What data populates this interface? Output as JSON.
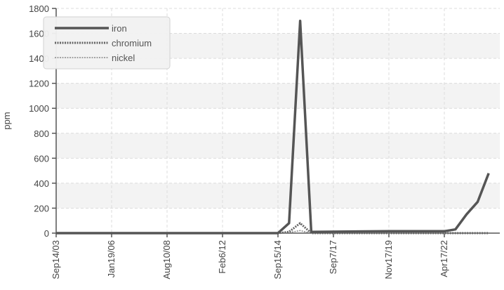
{
  "chart_data": {
    "type": "line",
    "title": "",
    "xlabel": "",
    "ylabel": "ppm",
    "ylim": [
      0,
      1800
    ],
    "yticks": [
      0,
      200,
      400,
      600,
      800,
      1000,
      1200,
      1400,
      1600,
      1800
    ],
    "xlim": [
      0,
      40
    ],
    "xtick_labels": [
      {
        "pos": 0,
        "label": "Sep14/03"
      },
      {
        "pos": 5,
        "label": "Jan19/06"
      },
      {
        "pos": 10,
        "label": "Aug10/08"
      },
      {
        "pos": 15,
        "label": "Feb6/12"
      },
      {
        "pos": 20,
        "label": "Sep15/14"
      },
      {
        "pos": 25,
        "label": "Sep7/17"
      },
      {
        "pos": 30,
        "label": "Nov17/19"
      },
      {
        "pos": 35,
        "label": "Apr17/22"
      }
    ],
    "grid": true,
    "legend_position": "top-left",
    "series": [
      {
        "name": "iron",
        "color": "#555555",
        "style": "solid",
        "x": [
          0,
          5,
          10,
          15,
          20,
          21,
          22,
          23,
          30,
          34,
          35,
          36,
          37,
          38,
          39
        ],
        "values": [
          0,
          0,
          0,
          0,
          0,
          80,
          1700,
          10,
          15,
          15,
          15,
          30,
          150,
          250,
          480
        ]
      },
      {
        "name": "chromium",
        "color": "#666666",
        "style": "dashed-thick",
        "x": [
          0,
          20,
          21,
          22,
          23,
          39
        ],
        "values": [
          0,
          0,
          10,
          80,
          0,
          0
        ]
      },
      {
        "name": "nickel",
        "color": "#888888",
        "style": "dashed-thin",
        "x": [
          0,
          20,
          21,
          22,
          23,
          39
        ],
        "values": [
          0,
          0,
          5,
          20,
          0,
          0
        ]
      }
    ]
  }
}
